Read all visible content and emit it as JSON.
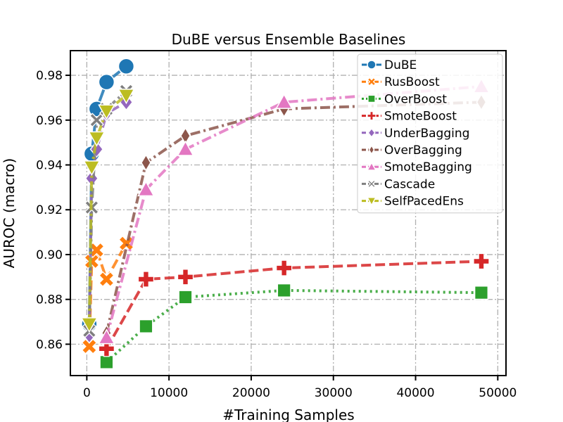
{
  "chart_data": {
    "type": "line",
    "title": "DuBE versus Ensemble Baselines",
    "xlabel": "#Training Samples",
    "ylabel": "AUROC (macro)",
    "xlim": [
      -2000,
      51000
    ],
    "ylim": [
      0.846,
      0.991
    ],
    "x_ticks": [
      0,
      10000,
      20000,
      30000,
      40000,
      50000
    ],
    "x_tick_labels": [
      "0",
      "10000",
      "20000",
      "30000",
      "40000",
      "50000"
    ],
    "y_ticks": [
      0.86,
      0.88,
      0.9,
      0.92,
      0.94,
      0.96,
      0.98
    ],
    "y_tick_labels": [
      "0.86",
      "0.88",
      "0.90",
      "0.92",
      "0.94",
      "0.96",
      "0.98"
    ],
    "grid": true,
    "legend_position": "top-right",
    "series": [
      {
        "name": "DuBE",
        "color": "#1f77b4",
        "marker": "circle",
        "dash": "solid",
        "x": [
          300,
          600,
          1200,
          2400,
          4800
        ],
        "y": [
          0.869,
          0.945,
          0.965,
          0.977,
          0.984
        ]
      },
      {
        "name": "RusBoost",
        "color": "#ff7f0e",
        "marker": "x",
        "dash": "dashed",
        "x": [
          300,
          600,
          1200,
          2400,
          4800
        ],
        "y": [
          0.859,
          0.897,
          0.902,
          0.889,
          0.905
        ]
      },
      {
        "name": "OverBoost",
        "color": "#2ca02c",
        "marker": "square",
        "dash": "dotted",
        "x": [
          2400,
          7200,
          12000,
          24000,
          48000
        ],
        "y": [
          0.852,
          0.868,
          0.881,
          0.884,
          0.883
        ]
      },
      {
        "name": "SmoteBoost",
        "color": "#d62728",
        "marker": "plus",
        "dash": "dashed",
        "x": [
          2400,
          7200,
          12000,
          24000,
          48000
        ],
        "y": [
          0.858,
          0.889,
          0.89,
          0.894,
          0.897
        ]
      },
      {
        "name": "UnderBagging",
        "color": "#9467bd",
        "marker": "diamond",
        "dash": "dashdot",
        "x": [
          300,
          600,
          1200,
          2400,
          4800
        ],
        "y": [
          0.864,
          0.934,
          0.947,
          0.963,
          0.968
        ]
      },
      {
        "name": "OverBagging",
        "color": "#8c564b",
        "marker": "thin-diamond",
        "dash": "dashdot",
        "x": [
          2400,
          7200,
          12000,
          24000,
          48000
        ],
        "y": [
          0.865,
          0.941,
          0.953,
          0.965,
          0.968
        ]
      },
      {
        "name": "SmoteBagging",
        "color": "#e377c2",
        "marker": "triangle-up",
        "dash": "dashdot",
        "x": [
          2400,
          7200,
          12000,
          24000,
          48000
        ],
        "y": [
          0.863,
          0.929,
          0.947,
          0.968,
          0.975
        ]
      },
      {
        "name": "Cascade",
        "color": "#7f7f7f",
        "marker": "x-thin",
        "dash": "dashdot",
        "x": [
          300,
          600,
          1200,
          2400,
          4800
        ],
        "y": [
          0.866,
          0.921,
          0.96,
          0.965,
          0.973
        ]
      },
      {
        "name": "SelfPacedEns",
        "color": "#bcbd22",
        "marker": "triangle-down",
        "dash": "dashdot",
        "x": [
          300,
          600,
          1200,
          2400,
          4800
        ],
        "y": [
          0.869,
          0.939,
          0.952,
          0.964,
          0.971
        ]
      }
    ]
  }
}
